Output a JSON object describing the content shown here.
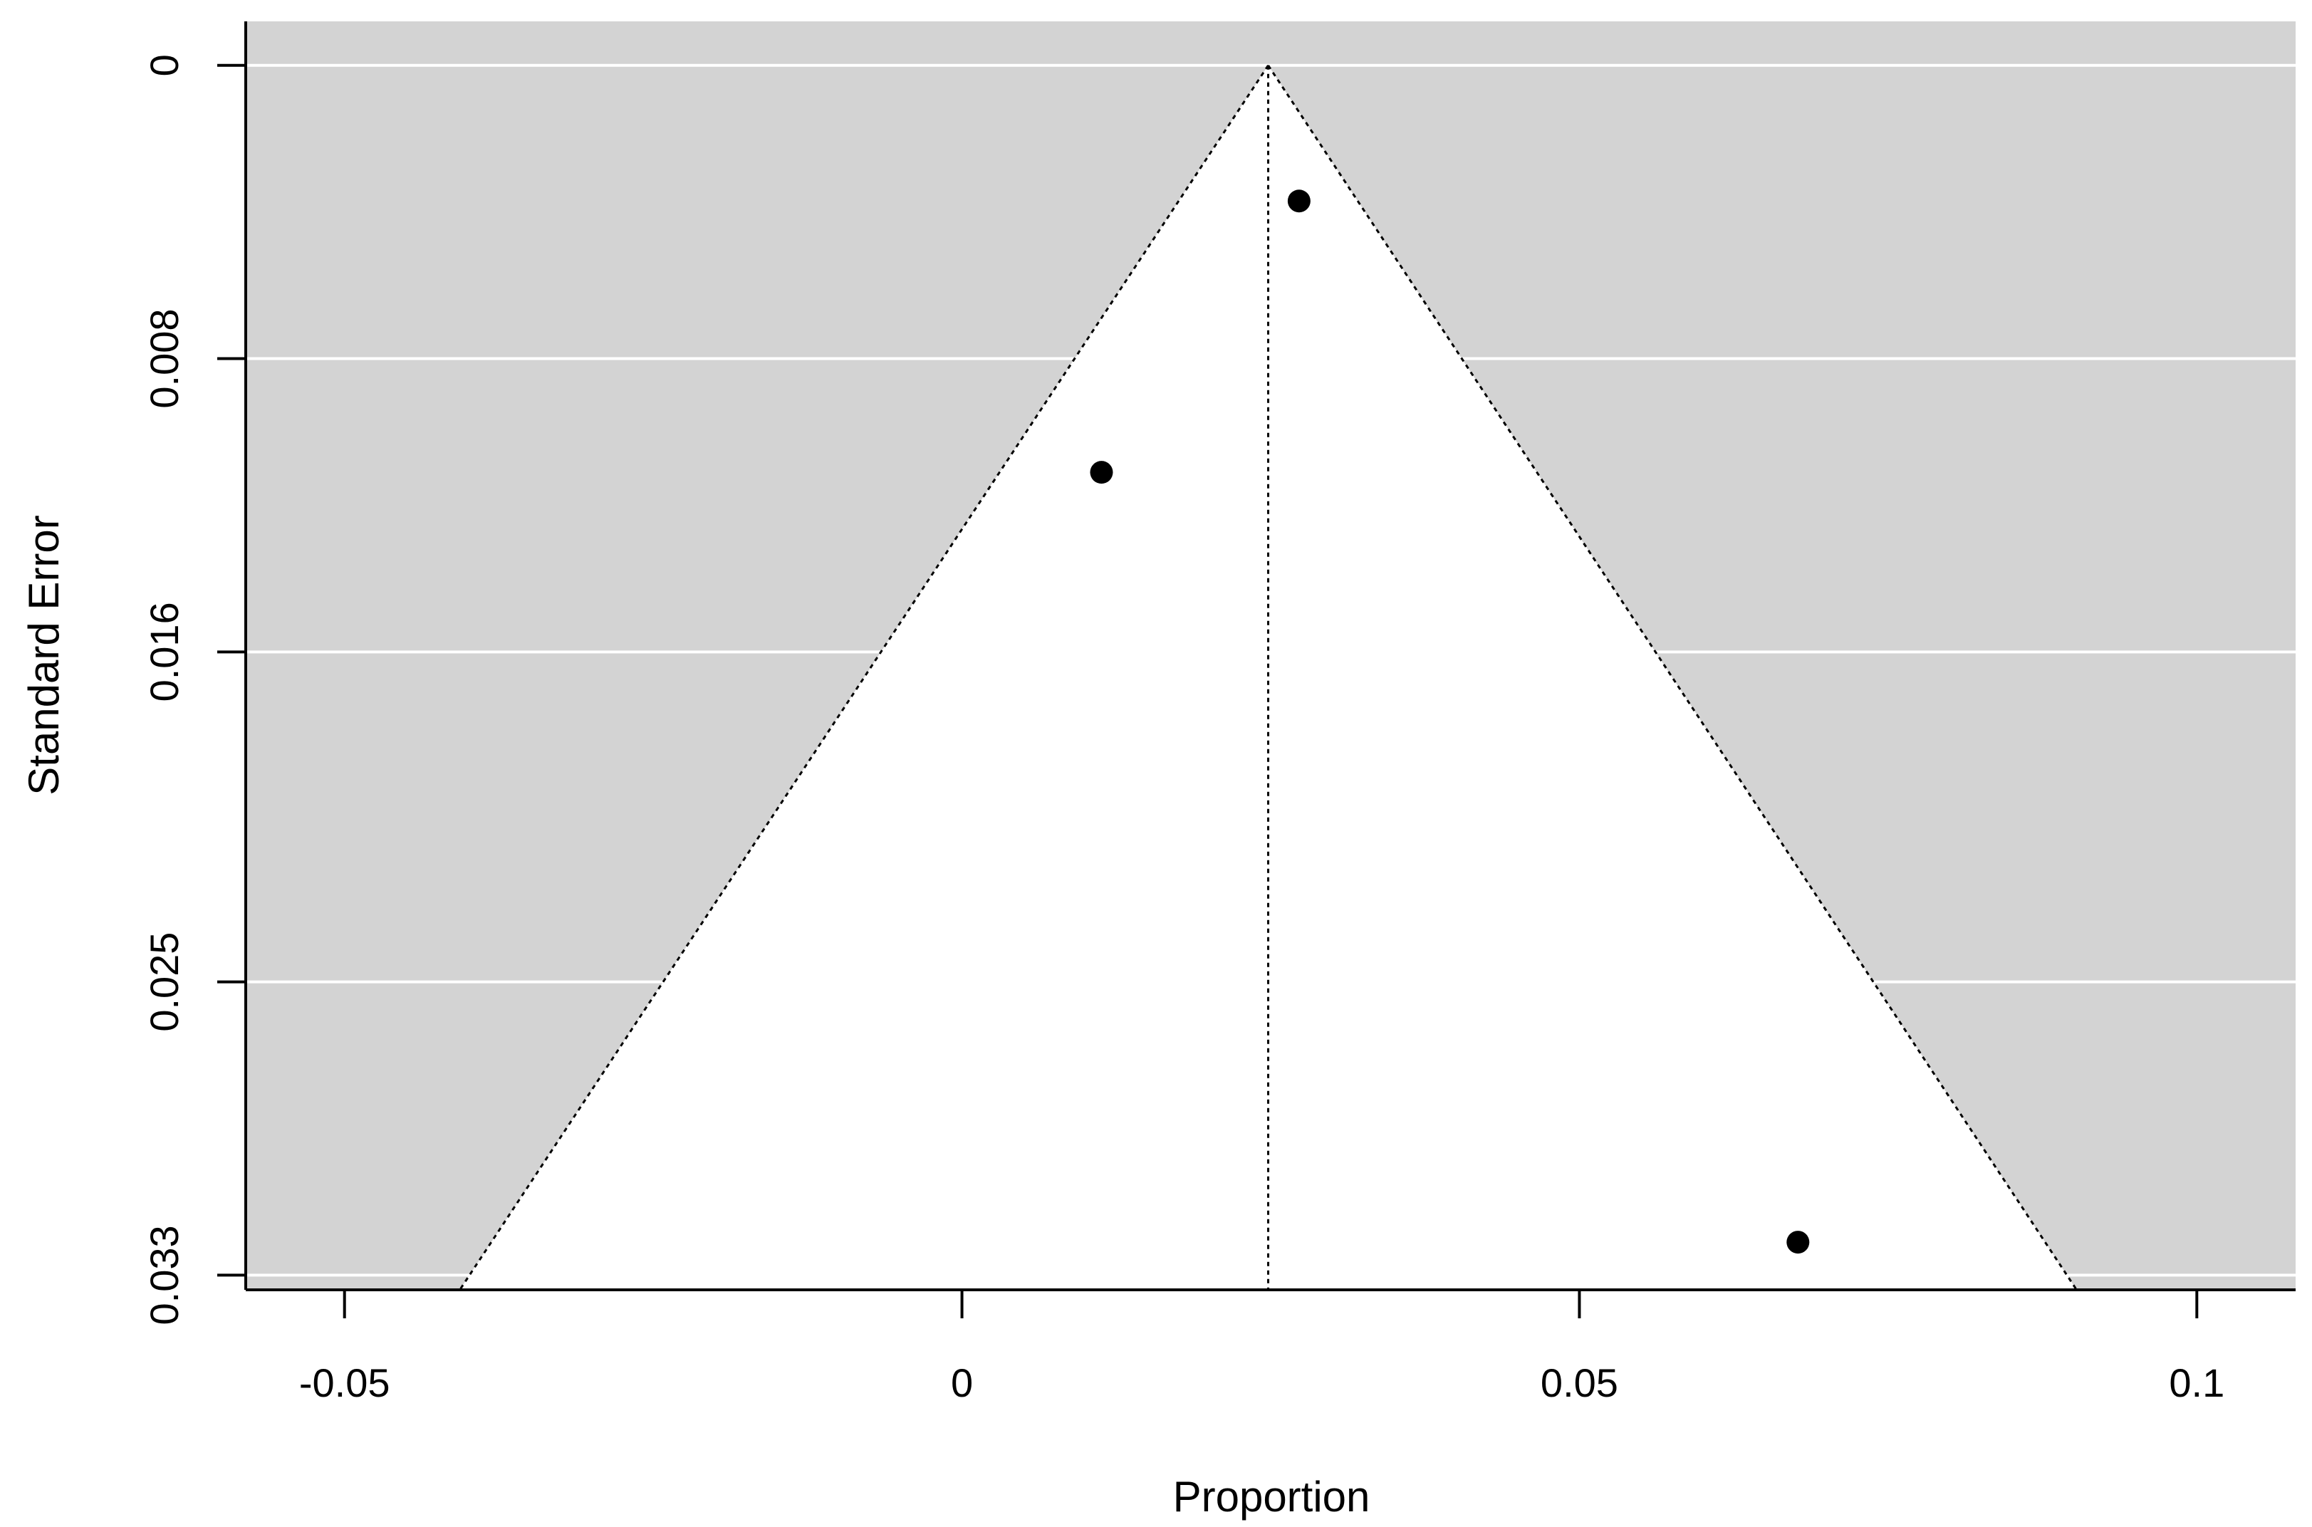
{
  "chart_data": {
    "type": "scatter",
    "plot_kind": "funnel",
    "xlabel": "Proportion",
    "ylabel": "Standard Error",
    "xlim": [
      -0.058,
      0.108
    ],
    "ylim": [
      0.0334,
      -0.0012
    ],
    "x_ticks": [
      {
        "value": -0.05,
        "label": "-0.05"
      },
      {
        "value": 0,
        "label": "0"
      },
      {
        "value": 0.05,
        "label": "0.05"
      },
      {
        "value": 0.1,
        "label": "0.1"
      }
    ],
    "y_ticks": [
      {
        "value": 0,
        "label": "0"
      },
      {
        "value": 0.008,
        "label": "0.008"
      },
      {
        "value": 0.016,
        "label": "0.016"
      },
      {
        "value": 0.025,
        "label": "0.025"
      },
      {
        "value": 0.033,
        "label": "0.033"
      }
    ],
    "y_axis_reversed": true,
    "grid": "horizontal",
    "points": [
      {
        "x": 0.0273,
        "y": 0.0037
      },
      {
        "x": 0.0113,
        "y": 0.0111
      },
      {
        "x": 0.0677,
        "y": 0.0321
      }
    ],
    "pooled_estimate": 0.0248,
    "funnel_z": 1.96,
    "colors": {
      "panel": "#d3d3d3",
      "funnel": "#ffffff",
      "grid": "#ffffff",
      "points": "#000000",
      "lines": "#000000"
    }
  }
}
